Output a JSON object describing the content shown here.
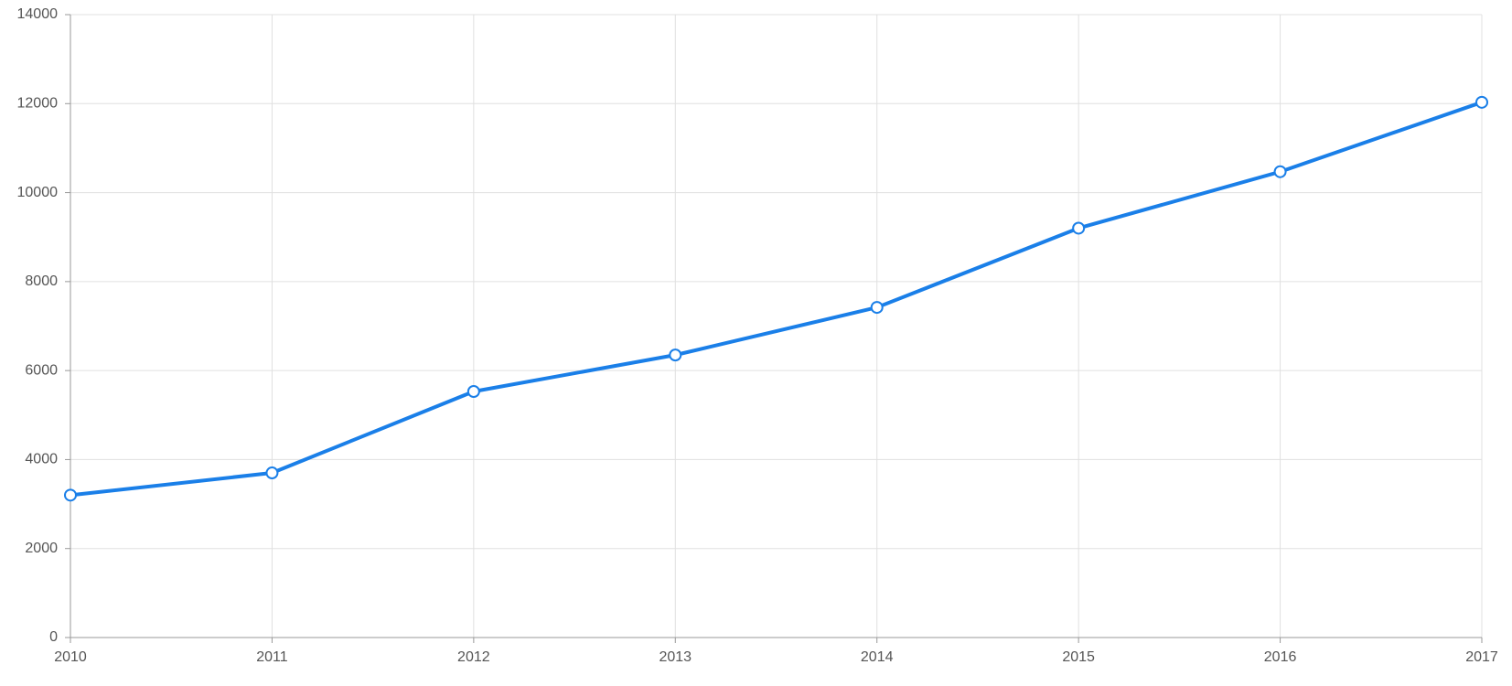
{
  "chart_data": {
    "type": "line",
    "categories": [
      "2010",
      "2011",
      "2012",
      "2013",
      "2014",
      "2015",
      "2016",
      "2017"
    ],
    "series": [
      {
        "color": "#1a7fe8",
        "values": [
          3200,
          3700,
          5530,
          6350,
          7420,
          9200,
          10470,
          12030
        ]
      }
    ],
    "ylim": [
      0,
      14000
    ],
    "yticks": [
      0,
      2000,
      4000,
      6000,
      8000,
      10000,
      12000,
      14000
    ],
    "grid": true
  }
}
